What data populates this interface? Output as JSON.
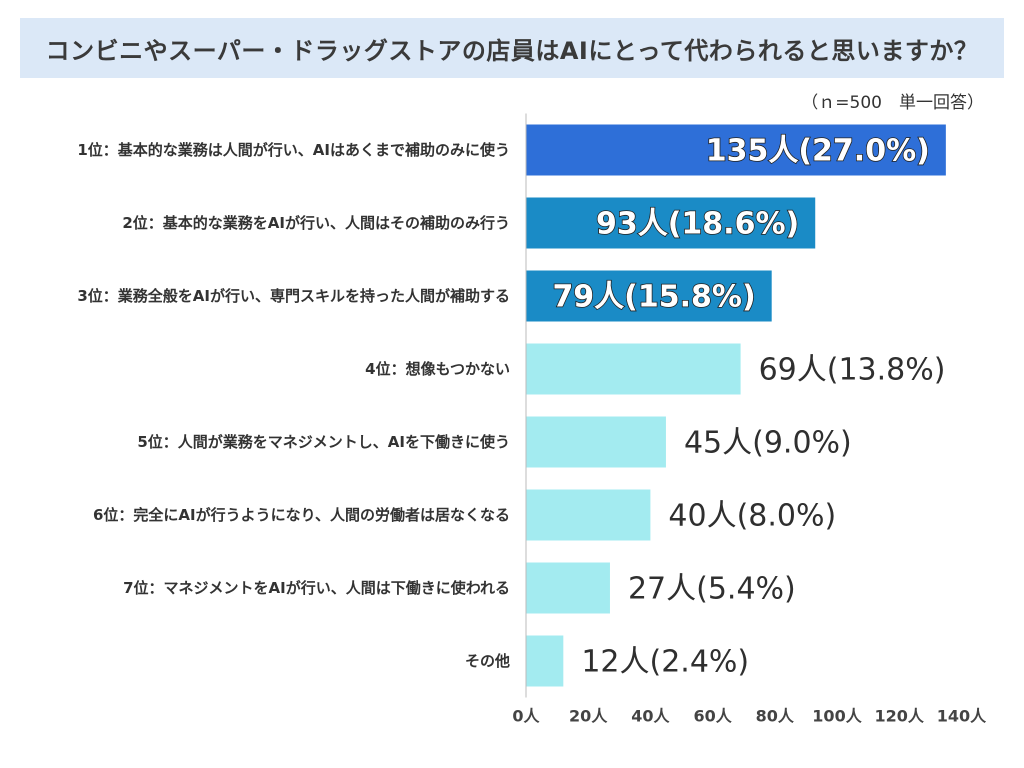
{
  "chart_data": {
    "type": "bar",
    "orientation": "horizontal",
    "title": "コンビニやスーパー・ドラッグストアの店員はAIにとって代わられると思いますか？",
    "note": "（ｎ=500　単一回答）",
    "categories": [
      "1位：基本的な業務は人間が行い、AIはあくまで補助のみに使う",
      "2位：基本的な業務をAIが行い、人間はその補助のみ行う",
      "3位：業務全般をAIが行い、専門スキルを持った人間が補助する",
      "4位：想像もつかない",
      "5位：人間が業務をマネジメントし、AIを下働きに使う",
      "6位：完全にAIが行うようになり、人間の労働者は居なくなる",
      "7位：マネジメントをAIが行い、人間は下働きに使われる",
      "その他"
    ],
    "values": [
      135,
      93,
      79,
      69,
      45,
      40,
      27,
      12
    ],
    "value_labels": [
      "135人(27.0%)",
      "93人(18.6%)",
      "79人(15.8%)",
      "69人(13.8%)",
      "45人(9.0%)",
      "40人(8.0%)",
      "27人(5.4%)",
      "12人(2.4%)"
    ],
    "bar_colors": [
      "#2e6fd8",
      "#1a8bc6",
      "#1a8bc6",
      "#a3ebf0",
      "#a3ebf0",
      "#a3ebf0",
      "#a3ebf0",
      "#a3ebf0"
    ],
    "label_inside": [
      true,
      true,
      true,
      false,
      false,
      false,
      false,
      false
    ],
    "xlim": [
      0,
      140
    ],
    "xticks": [
      0,
      20,
      40,
      60,
      80,
      100,
      120,
      140
    ],
    "xtick_labels": [
      "0人",
      "20人",
      "40人",
      "60人",
      "80人",
      "100人",
      "120人",
      "140人"
    ],
    "grid": false
  }
}
